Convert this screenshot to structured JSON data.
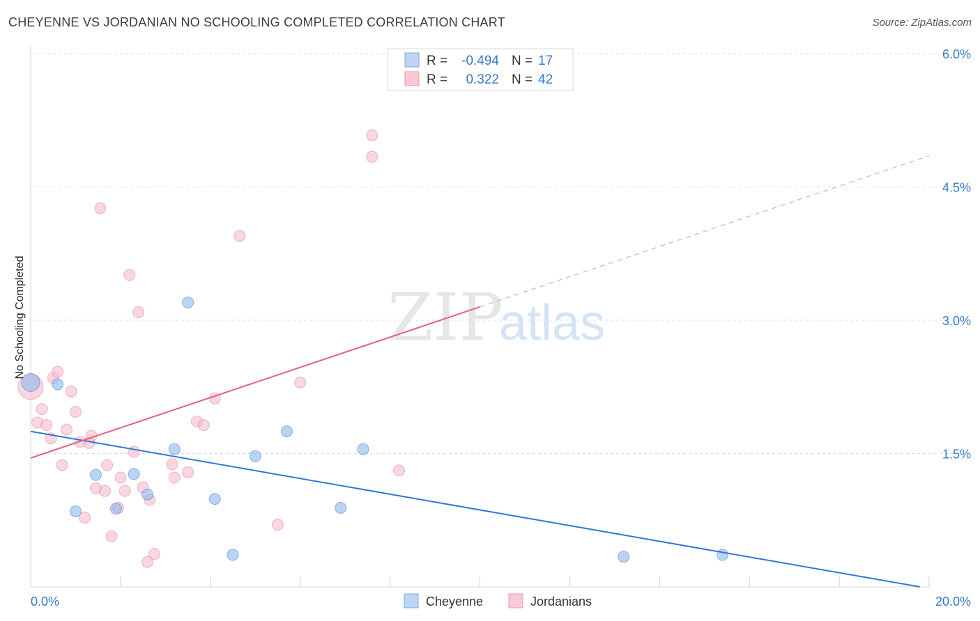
{
  "header": {
    "title": "CHEYENNE VS JORDANIAN NO SCHOOLING COMPLETED CORRELATION CHART",
    "source": "Source: ZipAtlas.com"
  },
  "watermark": {
    "zip": "ZIP",
    "atlas": "atlas"
  },
  "stats": [
    {
      "r_label": "R =",
      "r_value": "-0.494",
      "n_label": "N =",
      "n_value": "17"
    },
    {
      "r_label": "R =",
      "r_value": "0.322",
      "n_label": "N =",
      "n_value": "42"
    }
  ],
  "chart_data": {
    "type": "scatter",
    "title": "CHEYENNE VS JORDANIAN NO SCHOOLING COMPLETED CORRELATION CHART",
    "ylabel": "No Schooling Completed",
    "xlabel": "",
    "xlim": [
      0,
      20
    ],
    "ylim": [
      0,
      6.0
    ],
    "x_tick_labels": [
      {
        "value": 0,
        "label": "0.0%"
      },
      {
        "value": 20,
        "label": "20.0%"
      }
    ],
    "y_tick_labels": [
      {
        "value": 1.5,
        "label": "1.5%"
      },
      {
        "value": 3.0,
        "label": "3.0%"
      },
      {
        "value": 4.5,
        "label": "4.5%"
      },
      {
        "value": 6.0,
        "label": "6.0%"
      }
    ],
    "grid": true,
    "legend_position": "bottom-center",
    "series": [
      {
        "name": "Cheyenne",
        "color": "#8fb8ec",
        "line_color": "#2f78d6",
        "regression": {
          "x0": 0,
          "y0": 1.75,
          "x1": 19.8,
          "y1": 0.0
        },
        "points": [
          [
            0.0,
            2.3
          ],
          [
            0.6,
            2.28
          ],
          [
            1.0,
            0.85
          ],
          [
            1.45,
            1.26
          ],
          [
            1.9,
            0.88
          ],
          [
            2.3,
            1.27
          ],
          [
            2.6,
            1.04
          ],
          [
            3.2,
            1.55
          ],
          [
            3.5,
            3.2
          ],
          [
            4.1,
            0.99
          ],
          [
            4.5,
            0.36
          ],
          [
            5.0,
            1.47
          ],
          [
            5.7,
            1.75
          ],
          [
            6.9,
            0.89
          ],
          [
            7.4,
            1.55
          ],
          [
            13.2,
            0.34
          ],
          [
            15.4,
            0.36
          ]
        ]
      },
      {
        "name": "Jordanians",
        "color": "#f4b6c8",
        "line_color": "#e0608a",
        "regression": {
          "x0": 0,
          "y0": 1.45,
          "x1": 10.0,
          "y1": 3.15
        },
        "extension": {
          "x0": 10.0,
          "y0": 3.15,
          "x1": 20.0,
          "y1": 4.85
        },
        "points": [
          [
            0.0,
            2.25
          ],
          [
            0.15,
            1.85
          ],
          [
            0.25,
            2.0
          ],
          [
            0.35,
            1.82
          ],
          [
            0.45,
            1.67
          ],
          [
            0.5,
            2.35
          ],
          [
            0.6,
            2.42
          ],
          [
            0.7,
            1.37
          ],
          [
            0.8,
            1.77
          ],
          [
            0.9,
            2.2
          ],
          [
            1.0,
            1.97
          ],
          [
            1.1,
            1.63
          ],
          [
            1.2,
            0.78
          ],
          [
            1.3,
            1.62
          ],
          [
            1.35,
            1.7
          ],
          [
            1.45,
            1.11
          ],
          [
            1.55,
            4.26
          ],
          [
            1.65,
            1.08
          ],
          [
            1.7,
            1.37
          ],
          [
            1.8,
            0.57
          ],
          [
            1.95,
            0.89
          ],
          [
            2.0,
            1.23
          ],
          [
            2.1,
            1.08
          ],
          [
            2.2,
            3.51
          ],
          [
            2.3,
            1.52
          ],
          [
            2.4,
            3.09
          ],
          [
            2.5,
            1.12
          ],
          [
            2.6,
            0.28
          ],
          [
            2.65,
            0.98
          ],
          [
            2.75,
            0.37
          ],
          [
            3.15,
            1.38
          ],
          [
            3.2,
            1.23
          ],
          [
            3.5,
            1.29
          ],
          [
            3.7,
            1.86
          ],
          [
            3.85,
            1.82
          ],
          [
            4.1,
            2.12
          ],
          [
            4.65,
            3.95
          ],
          [
            5.5,
            0.7
          ],
          [
            6.0,
            2.3
          ],
          [
            7.6,
            5.08
          ],
          [
            7.6,
            4.84
          ],
          [
            8.2,
            1.31
          ]
        ]
      }
    ]
  }
}
